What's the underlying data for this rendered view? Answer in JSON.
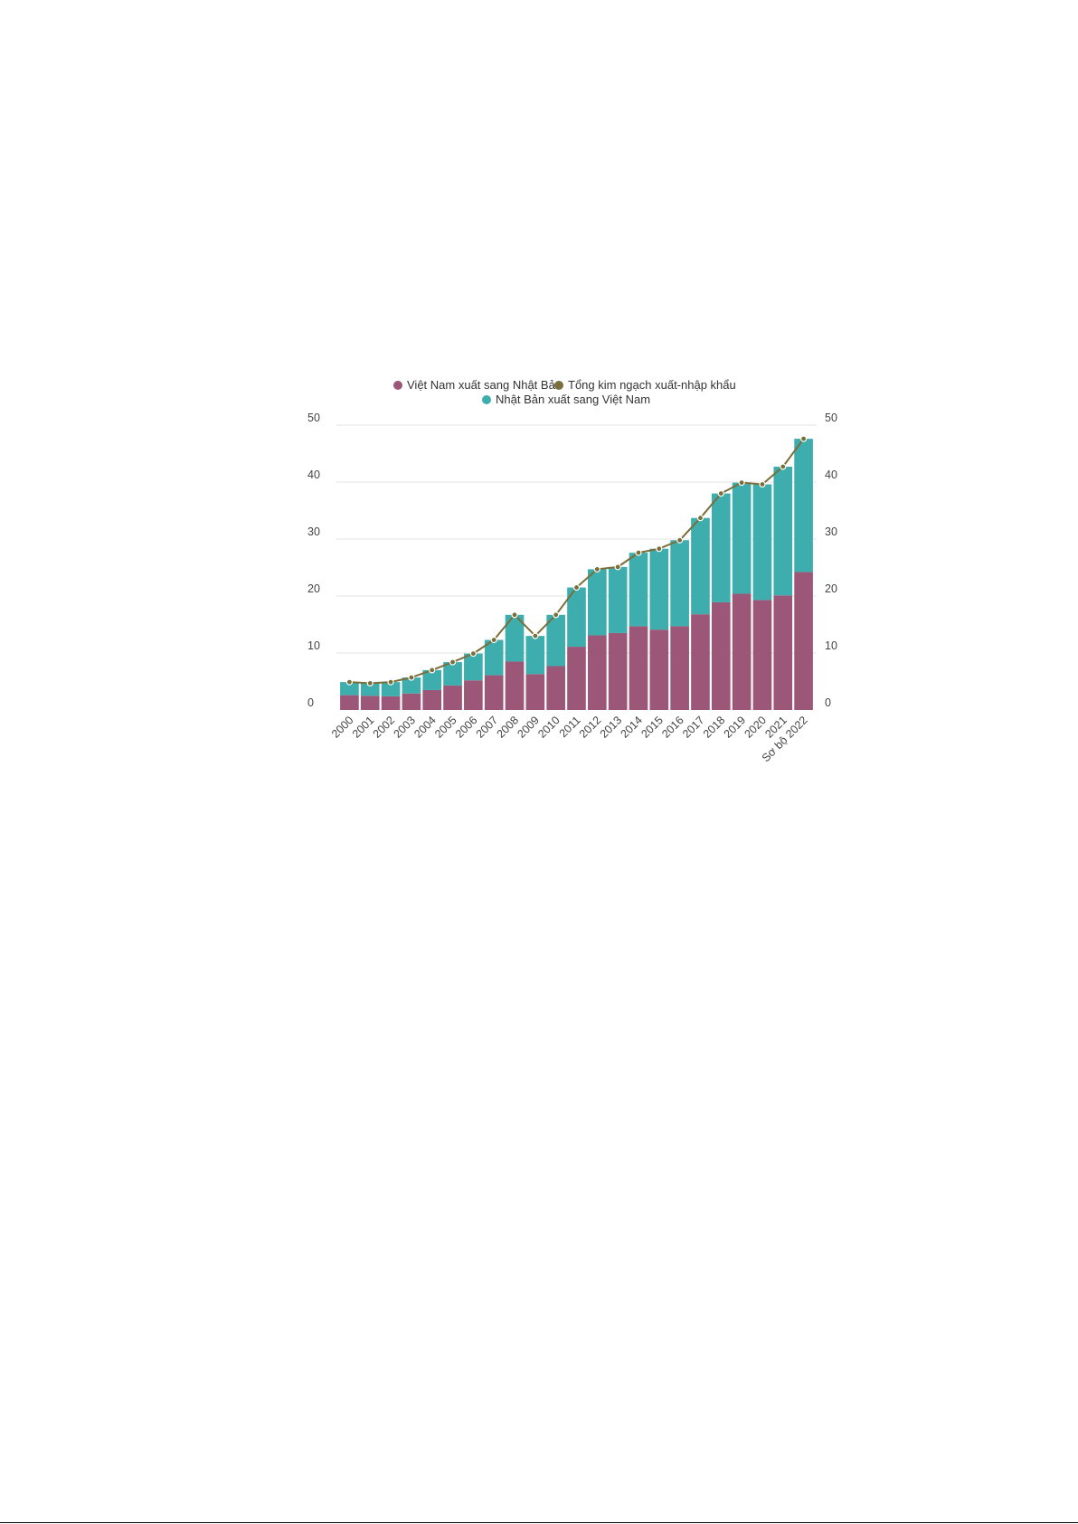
{
  "chart_data": {
    "type": "bar",
    "stacked": true,
    "categories": [
      "2000",
      "2001",
      "2002",
      "2003",
      "2004",
      "2005",
      "2006",
      "2007",
      "2008",
      "2009",
      "2010",
      "2011",
      "2012",
      "2013",
      "2014",
      "2015",
      "2016",
      "2017",
      "2018",
      "2019",
      "2020",
      "2021",
      "Sơ bộ 2022"
    ],
    "series": [
      {
        "name": "Việt Nam xuất sang Nhật Bản",
        "type": "bar",
        "color": "#9c5677",
        "values": [
          2.6,
          2.5,
          2.4,
          2.9,
          3.5,
          4.3,
          5.2,
          6.1,
          8.5,
          6.3,
          7.7,
          11.1,
          13.1,
          13.5,
          14.7,
          14.1,
          14.7,
          16.8,
          18.9,
          20.4,
          19.3,
          20.1,
          24.2
        ]
      },
      {
        "name": "Nhật Bản xuất sang Việt Nam",
        "type": "bar",
        "color": "#3dadae",
        "values": [
          2.3,
          2.2,
          2.5,
          2.8,
          3.5,
          4.1,
          4.7,
          6.2,
          8.2,
          6.7,
          9.0,
          10.4,
          11.6,
          11.6,
          12.9,
          14.2,
          15.1,
          16.9,
          19.1,
          19.5,
          20.3,
          22.6,
          23.4
        ]
      },
      {
        "name": "Tổng kim ngạch xuất-nhập khẩu",
        "type": "line",
        "color": "#7a6e3b",
        "values": [
          4.9,
          4.7,
          4.9,
          5.7,
          7.0,
          8.4,
          9.9,
          12.3,
          16.7,
          13.0,
          16.7,
          21.5,
          24.7,
          25.1,
          27.6,
          28.3,
          29.8,
          33.7,
          38.0,
          39.9,
          39.6,
          42.7,
          47.6
        ]
      }
    ],
    "ylim": [
      0,
      50
    ],
    "yticks": [
      0,
      10,
      20,
      30,
      40,
      50
    ],
    "right_axis": true,
    "grid": true,
    "legend": "top-center",
    "title": "",
    "xlabel": "",
    "ylabel": ""
  }
}
